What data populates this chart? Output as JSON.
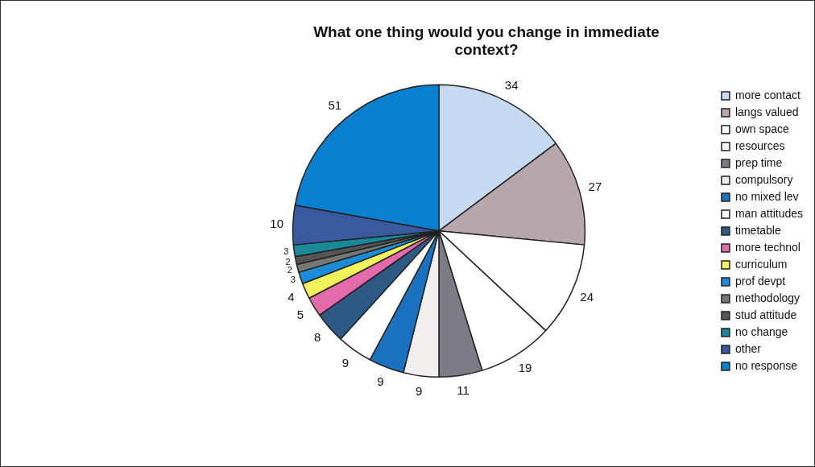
{
  "chart_data": {
    "type": "pie",
    "title": "What one thing would you change in immediate context?",
    "categories": [
      "more contact",
      "langs valued",
      "own space",
      "resources",
      "prep time",
      "compulsory",
      "no mixed lev",
      "man attitudes",
      "timetable",
      "more technol",
      "curriculum",
      "prof devpt",
      "methodology",
      "stud attitude",
      "no change",
      "other",
      "no response"
    ],
    "values": [
      34,
      27,
      24,
      19,
      11,
      9,
      9,
      9,
      8,
      5,
      4,
      3,
      2,
      2,
      3,
      10,
      51
    ],
    "colors": [
      "#c5d9f0",
      "#b7a7ad",
      "#ffffff",
      "#ffffff",
      "#7d7b86",
      "#f3eeee",
      "#1a72c0",
      "#ffffff",
      "#2e5a86",
      "#e36aab",
      "#f2f25a",
      "#1a8cd8",
      "#777777",
      "#555555",
      "#1a8a9a",
      "#3a5aa0",
      "#0a80d0"
    ],
    "data_labels": true,
    "legend": "right"
  }
}
